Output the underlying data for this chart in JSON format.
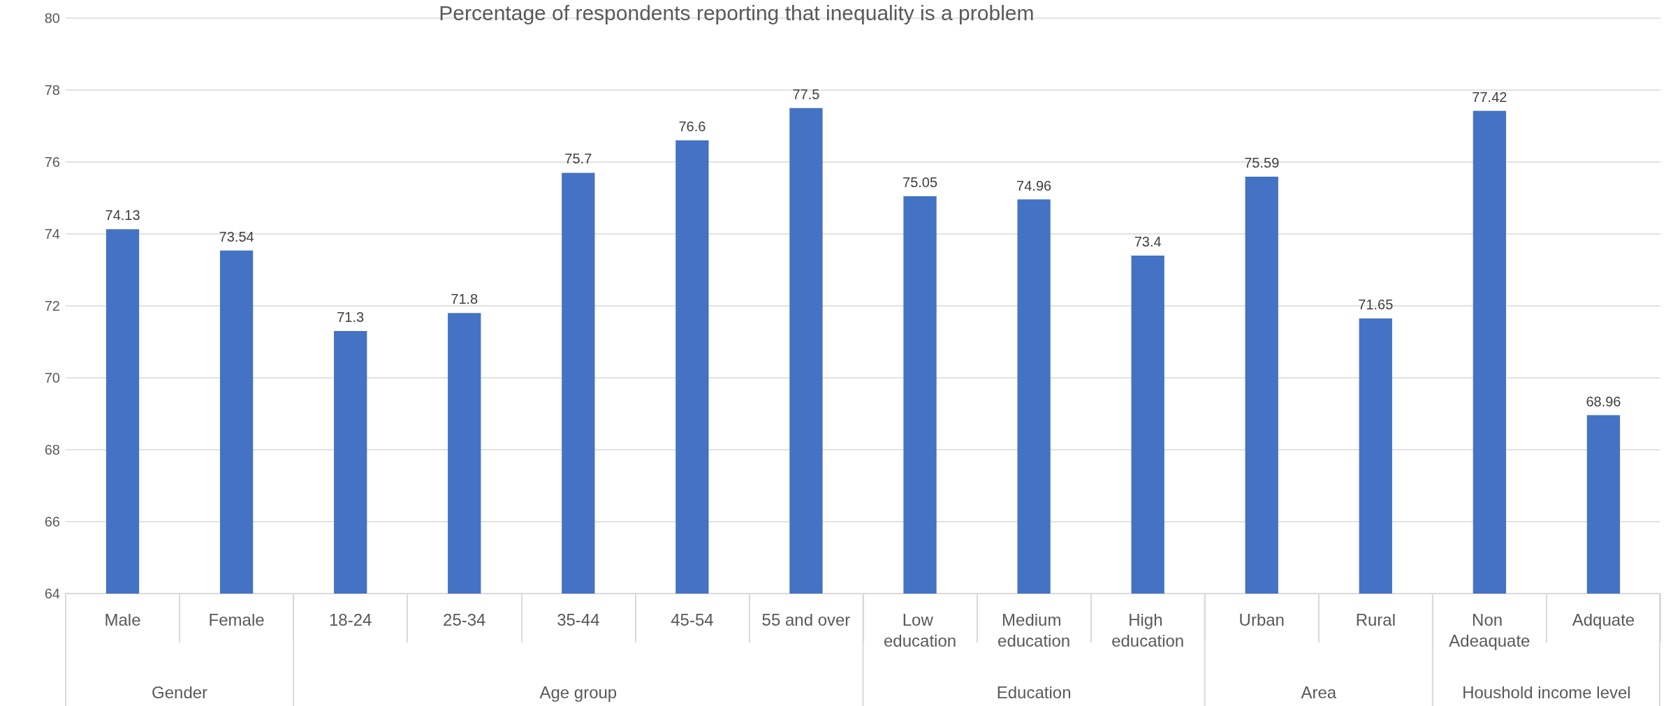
{
  "chart_data": {
    "type": "bar",
    "title": "Percentage of respondents reporting that inequality is a problem",
    "categories": [
      "Male",
      "Female",
      "18-24",
      "25-34",
      "35-44",
      "45-54",
      "55 and over",
      "Low education",
      "Medium education",
      "High education",
      "Urban",
      "Rural",
      "Non Adeaquate",
      "Adquate"
    ],
    "values": [
      74.13,
      73.54,
      71.3,
      71.8,
      75.7,
      76.6,
      77.5,
      75.05,
      74.96,
      73.4,
      75.59,
      71.65,
      77.42,
      68.96
    ],
    "color": "#4472c4",
    "ylim": [
      64,
      80
    ],
    "yticks": [
      64,
      66,
      68,
      70,
      72,
      74,
      76,
      78,
      80
    ],
    "grid": "y",
    "data_labels": true,
    "annotations": [
      "Gender",
      "Age group",
      "Education",
      "Area",
      "Houshold income level"
    ]
  }
}
